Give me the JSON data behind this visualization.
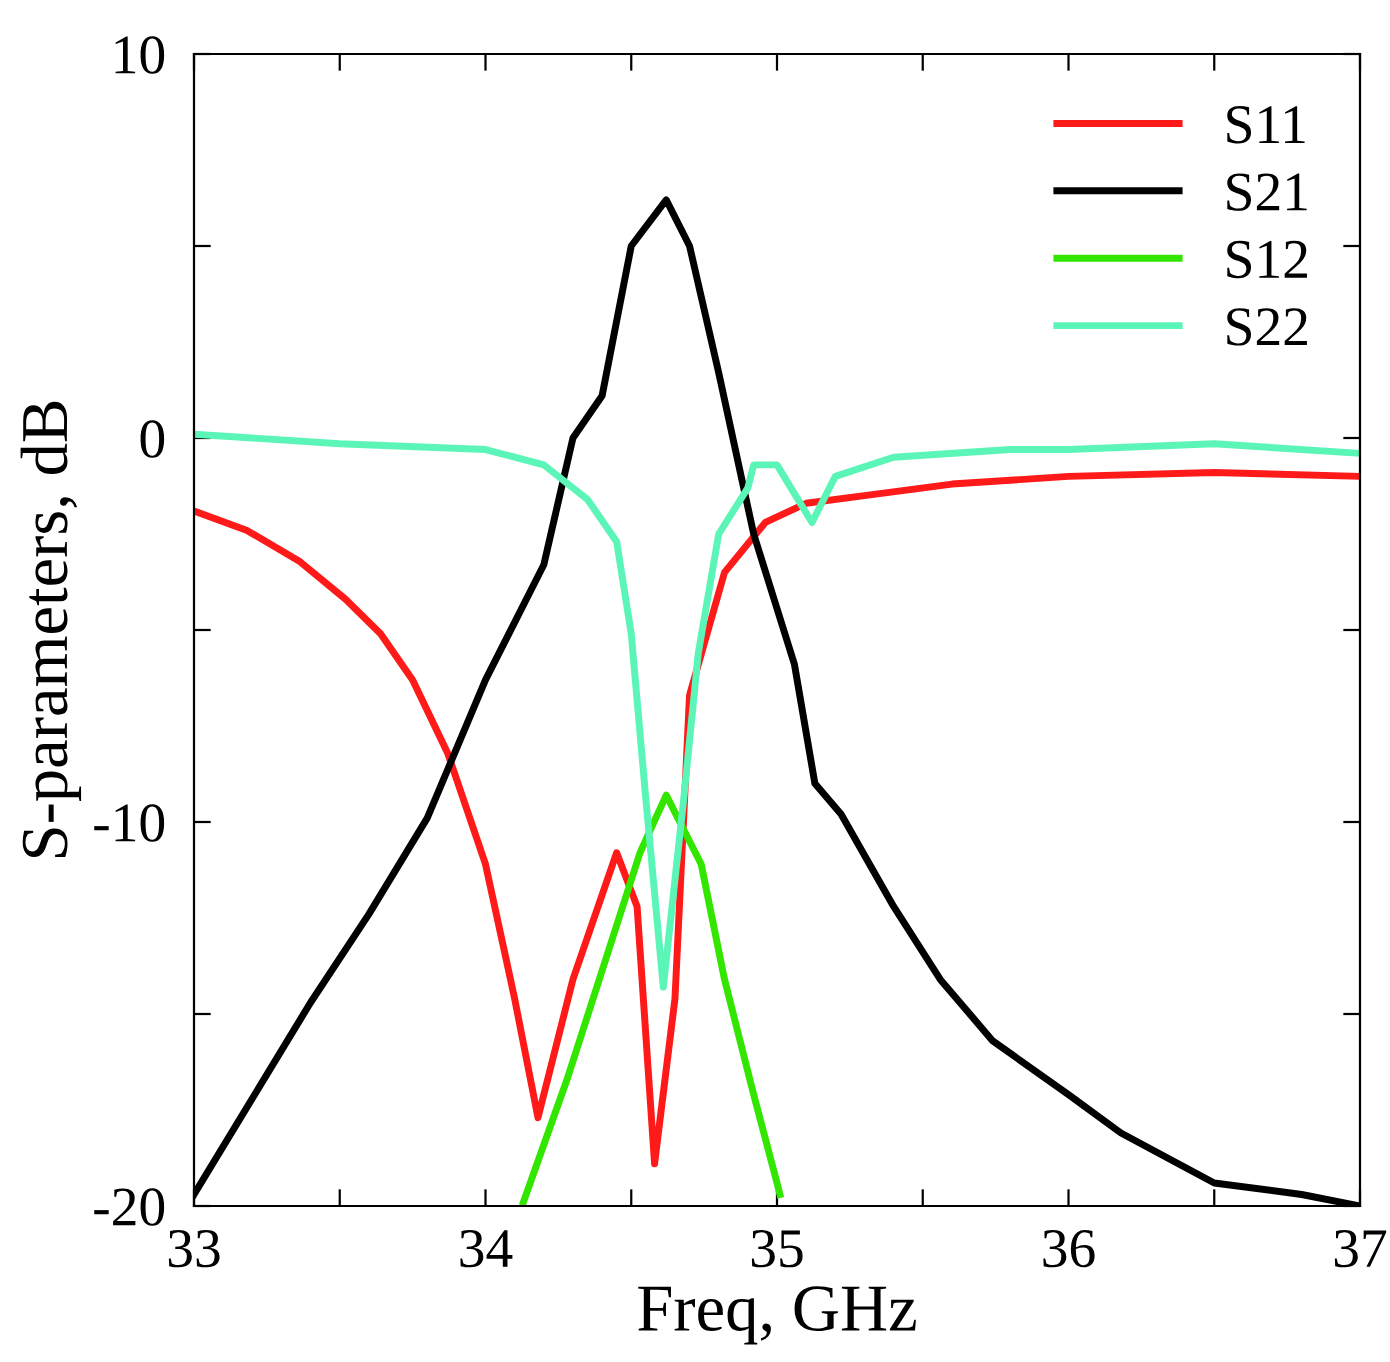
{
  "chart_data": {
    "type": "line",
    "xlabel": "Freq, GHz",
    "ylabel": "S-parameters, dB",
    "xlim": [
      33,
      37
    ],
    "ylim": [
      -20,
      10
    ],
    "xticks": [
      33,
      {
        "value": 33.5,
        "label": null
      },
      34,
      {
        "value": 34.5,
        "label": null
      },
      35,
      {
        "value": 35.5,
        "label": null
      },
      36,
      {
        "value": 36.5,
        "label": null
      },
      37
    ],
    "yticks": [
      -20,
      {
        "value": -15,
        "label": null
      },
      -10,
      {
        "value": -5,
        "label": null
      },
      0,
      {
        "value": 5,
        "label": null
      },
      10
    ],
    "grid": false,
    "legend": "top right",
    "marker": "none",
    "line_style": "solid",
    "series": [
      {
        "name": "S11",
        "color": "#ff1a1a",
        "x": [
          33.0,
          33.18,
          33.36,
          33.52,
          33.64,
          33.75,
          33.87,
          34.0,
          34.1,
          34.18,
          34.3,
          34.45,
          34.52,
          34.58,
          34.65,
          34.7,
          34.82,
          34.96,
          35.1,
          35.3,
          35.6,
          36.0,
          36.5,
          37.0
        ],
        "values": [
          -1.9,
          -2.4,
          -3.2,
          -4.2,
          -5.1,
          -6.3,
          -8.2,
          -11.1,
          -14.6,
          -17.7,
          -14.1,
          -10.8,
          -12.2,
          -18.9,
          -14.6,
          -6.7,
          -3.5,
          -2.2,
          -1.7,
          -1.5,
          -1.2,
          -1.0,
          -0.9,
          -1.0
        ]
      },
      {
        "name": "S21",
        "color": "#000000",
        "x": [
          33.0,
          33.2,
          33.4,
          33.6,
          33.8,
          34.0,
          34.2,
          34.3,
          34.4,
          34.5,
          34.62,
          34.7,
          34.8,
          34.92,
          35.06,
          35.13,
          35.22,
          35.4,
          35.56,
          35.74,
          36.0,
          36.18,
          36.5,
          36.8,
          37.0
        ],
        "values": [
          -19.7,
          -17.2,
          -14.7,
          -12.4,
          -9.9,
          -6.3,
          -3.3,
          0.0,
          1.1,
          5.0,
          6.2,
          5.0,
          1.7,
          -2.5,
          -5.9,
          -9.0,
          -9.8,
          -12.2,
          -14.1,
          -15.7,
          -17.1,
          -18.1,
          -19.4,
          -19.7,
          -20.0
        ]
      },
      {
        "name": "S12",
        "color": "#33e600",
        "x": [
          34.13,
          34.28,
          34.42,
          34.53,
          34.62,
          34.74,
          34.82,
          34.92,
          35.0,
          35.01
        ],
        "values": [
          -19.9,
          -16.7,
          -13.4,
          -10.8,
          -9.3,
          -11.1,
          -14.1,
          -17.1,
          -19.4,
          -19.7
        ]
      },
      {
        "name": "S22",
        "color": "#5cf5b8",
        "x": [
          33.0,
          33.5,
          34.0,
          34.2,
          34.35,
          34.45,
          34.5,
          34.55,
          34.61,
          34.68,
          34.73,
          34.8,
          34.9,
          34.92,
          35.0,
          35.12,
          35.2,
          35.4,
          35.8,
          36.0,
          36.5,
          37.0
        ],
        "values": [
          0.1,
          -0.15,
          -0.3,
          -0.7,
          -1.6,
          -2.7,
          -5.1,
          -9.4,
          -14.3,
          -9.4,
          -5.6,
          -2.5,
          -1.3,
          -0.7,
          -0.7,
          -2.2,
          -1.0,
          -0.5,
          -0.3,
          -0.3,
          -0.15,
          -0.4
        ]
      }
    ]
  }
}
